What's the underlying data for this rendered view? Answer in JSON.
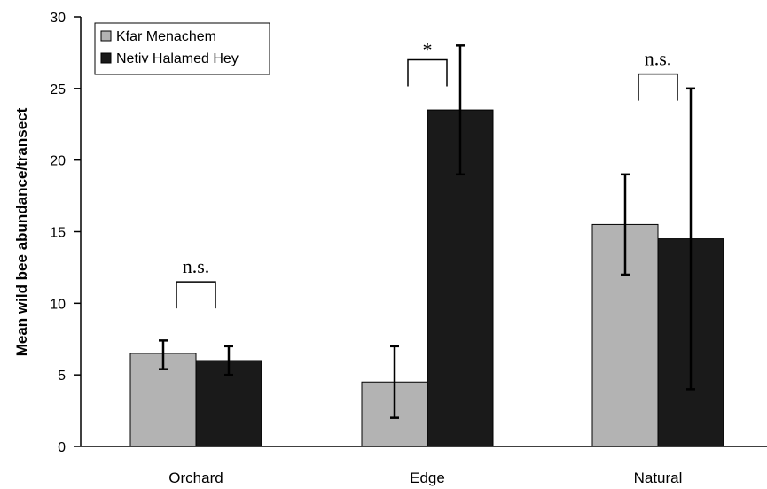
{
  "chart_data": {
    "type": "bar",
    "title": "",
    "xlabel": "",
    "ylabel": "Mean wild bee abundance/transect",
    "ylim": [
      0,
      30
    ],
    "yticks": [
      0,
      5,
      10,
      15,
      20,
      25,
      30
    ],
    "categories": [
      "Orchard",
      "Edge",
      "Natural"
    ],
    "series": [
      {
        "name": "Kfar Menachem",
        "color": "#b3b3b3",
        "values": [
          6.5,
          4.5,
          15.5
        ],
        "err_low": [
          5.4,
          2.0,
          12.0
        ],
        "err_high": [
          7.4,
          7.0,
          19.0
        ]
      },
      {
        "name": "Netiv Halamed Hey",
        "color": "#1a1a1a",
        "values": [
          6.0,
          23.5,
          14.5
        ],
        "err_low": [
          5.0,
          19.0,
          4.0
        ],
        "err_high": [
          7.0,
          28.0,
          25.0
        ]
      }
    ],
    "significance": [
      "n.s.",
      "*",
      "n.s."
    ],
    "significance_y": [
      11.5,
      27.0,
      26.0
    ],
    "legend_position": "top-left",
    "grid": false
  }
}
